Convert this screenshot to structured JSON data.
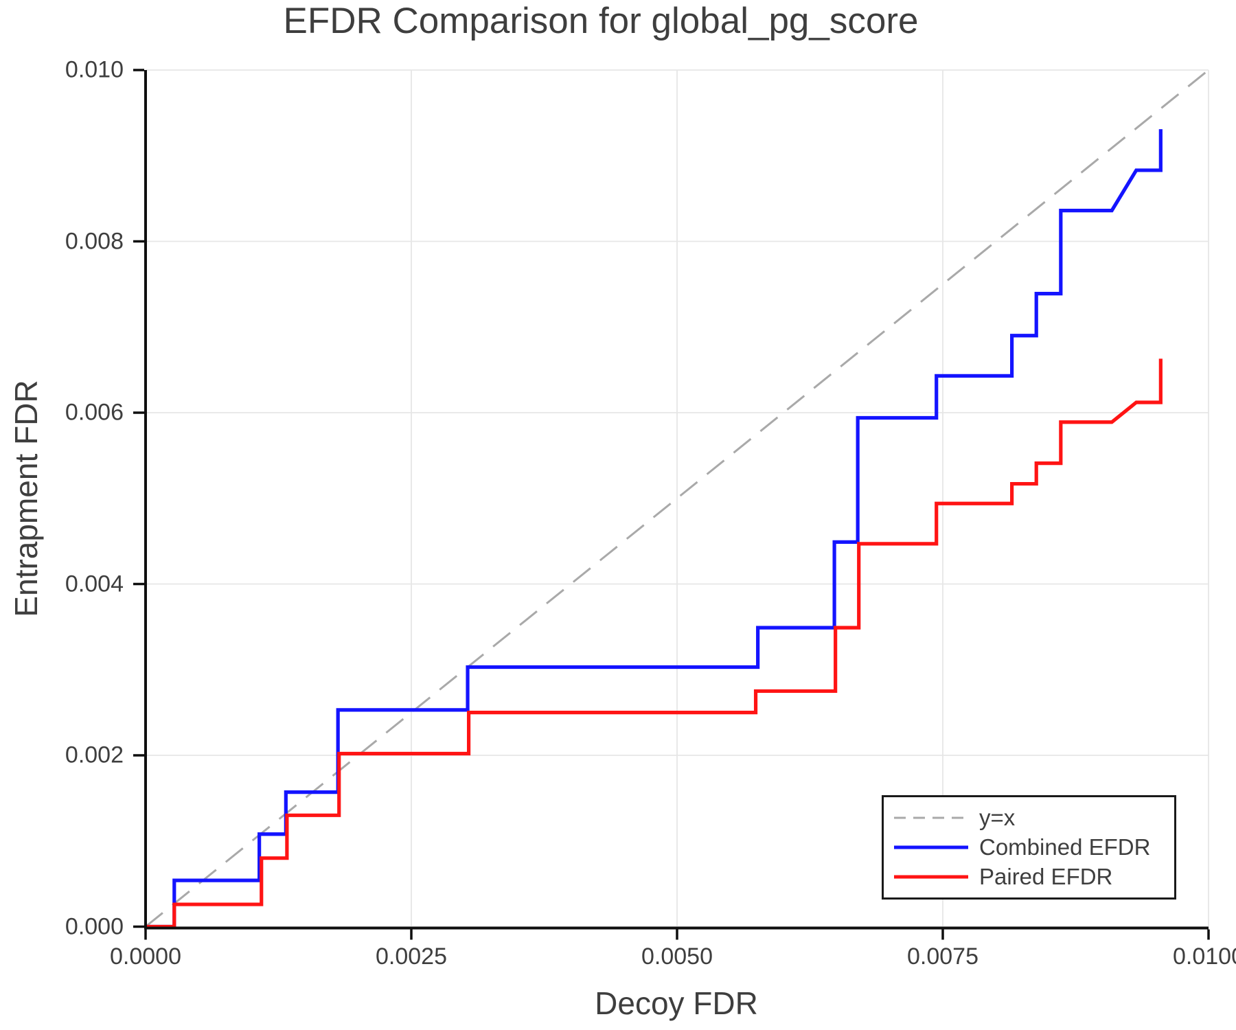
{
  "chart_data": {
    "type": "line",
    "title": "EFDR Comparison for global_pg_score",
    "xlabel": "Decoy FDR",
    "ylabel": "Entrapment FDR",
    "xlim": [
      0.0,
      0.01
    ],
    "ylim": [
      0.0,
      0.01
    ],
    "grid": true,
    "legend_position": "lower right",
    "x_ticks": [
      0.0,
      0.0025,
      0.005,
      0.0075,
      0.01
    ],
    "x_tick_labels": [
      "0.0000",
      "0.0025",
      "0.0050",
      "0.0075",
      "0.0100"
    ],
    "y_ticks": [
      0.0,
      0.002,
      0.004,
      0.006,
      0.008,
      0.01
    ],
    "y_tick_labels": [
      "0.000",
      "0.002",
      "0.004",
      "0.006",
      "0.008",
      "0.010"
    ],
    "reference_line": {
      "label": "y=x",
      "style": "dashed",
      "color": "#a9a9a9",
      "from": [
        0.0,
        0.0
      ],
      "to": [
        0.01,
        0.01
      ]
    },
    "series": [
      {
        "name": "Combined EFDR",
        "color": "#1414ff",
        "points": [
          [
            0.0,
            0.0
          ],
          [
            0.00027,
            0.0
          ],
          [
            0.00027,
            0.00054
          ],
          [
            0.00107,
            0.00054
          ],
          [
            0.00107,
            0.00108
          ],
          [
            0.00132,
            0.00108
          ],
          [
            0.00132,
            0.00157
          ],
          [
            0.00181,
            0.00157
          ],
          [
            0.00181,
            0.00253
          ],
          [
            0.00303,
            0.00253
          ],
          [
            0.00303,
            0.00303
          ],
          [
            0.00576,
            0.00303
          ],
          [
            0.00576,
            0.00349
          ],
          [
            0.00648,
            0.00349
          ],
          [
            0.00648,
            0.00449
          ],
          [
            0.0067,
            0.00449
          ],
          [
            0.0067,
            0.00594
          ],
          [
            0.00744,
            0.00594
          ],
          [
            0.00744,
            0.00643
          ],
          [
            0.00815,
            0.00643
          ],
          [
            0.00815,
            0.0069
          ],
          [
            0.00838,
            0.0069
          ],
          [
            0.00838,
            0.00739
          ],
          [
            0.00861,
            0.00739
          ],
          [
            0.00861,
            0.00836
          ],
          [
            0.00909,
            0.00836
          ],
          [
            0.00932,
            0.00883
          ],
          [
            0.00955,
            0.00883
          ],
          [
            0.00955,
            0.00931
          ]
        ]
      },
      {
        "name": "Paired EFDR",
        "color": "#ff1414",
        "points": [
          [
            0.0,
            0.0
          ],
          [
            0.00027,
            0.0
          ],
          [
            0.00027,
            0.00026
          ],
          [
            0.00109,
            0.00026
          ],
          [
            0.00109,
            0.0008
          ],
          [
            0.00133,
            0.0008
          ],
          [
            0.00133,
            0.0013
          ],
          [
            0.00182,
            0.0013
          ],
          [
            0.00182,
            0.00202
          ],
          [
            0.00304,
            0.00202
          ],
          [
            0.00304,
            0.0025
          ],
          [
            0.00574,
            0.0025
          ],
          [
            0.00574,
            0.00275
          ],
          [
            0.00649,
            0.00275
          ],
          [
            0.00649,
            0.00349
          ],
          [
            0.00671,
            0.00349
          ],
          [
            0.00671,
            0.00447
          ],
          [
            0.00744,
            0.00447
          ],
          [
            0.00744,
            0.00494
          ],
          [
            0.00815,
            0.00494
          ],
          [
            0.00815,
            0.00517
          ],
          [
            0.00838,
            0.00517
          ],
          [
            0.00838,
            0.00541
          ],
          [
            0.00861,
            0.00541
          ],
          [
            0.00861,
            0.00589
          ],
          [
            0.00909,
            0.00589
          ],
          [
            0.00932,
            0.00612
          ],
          [
            0.00955,
            0.00612
          ],
          [
            0.00955,
            0.00663
          ]
        ]
      }
    ]
  },
  "legend": {
    "entries": [
      {
        "label": "y=x",
        "color": "#a9a9a9",
        "dashed": true
      },
      {
        "label": "Combined EFDR",
        "color": "#1414ff",
        "dashed": false
      },
      {
        "label": "Paired EFDR",
        "color": "#ff1414",
        "dashed": false
      }
    ]
  }
}
